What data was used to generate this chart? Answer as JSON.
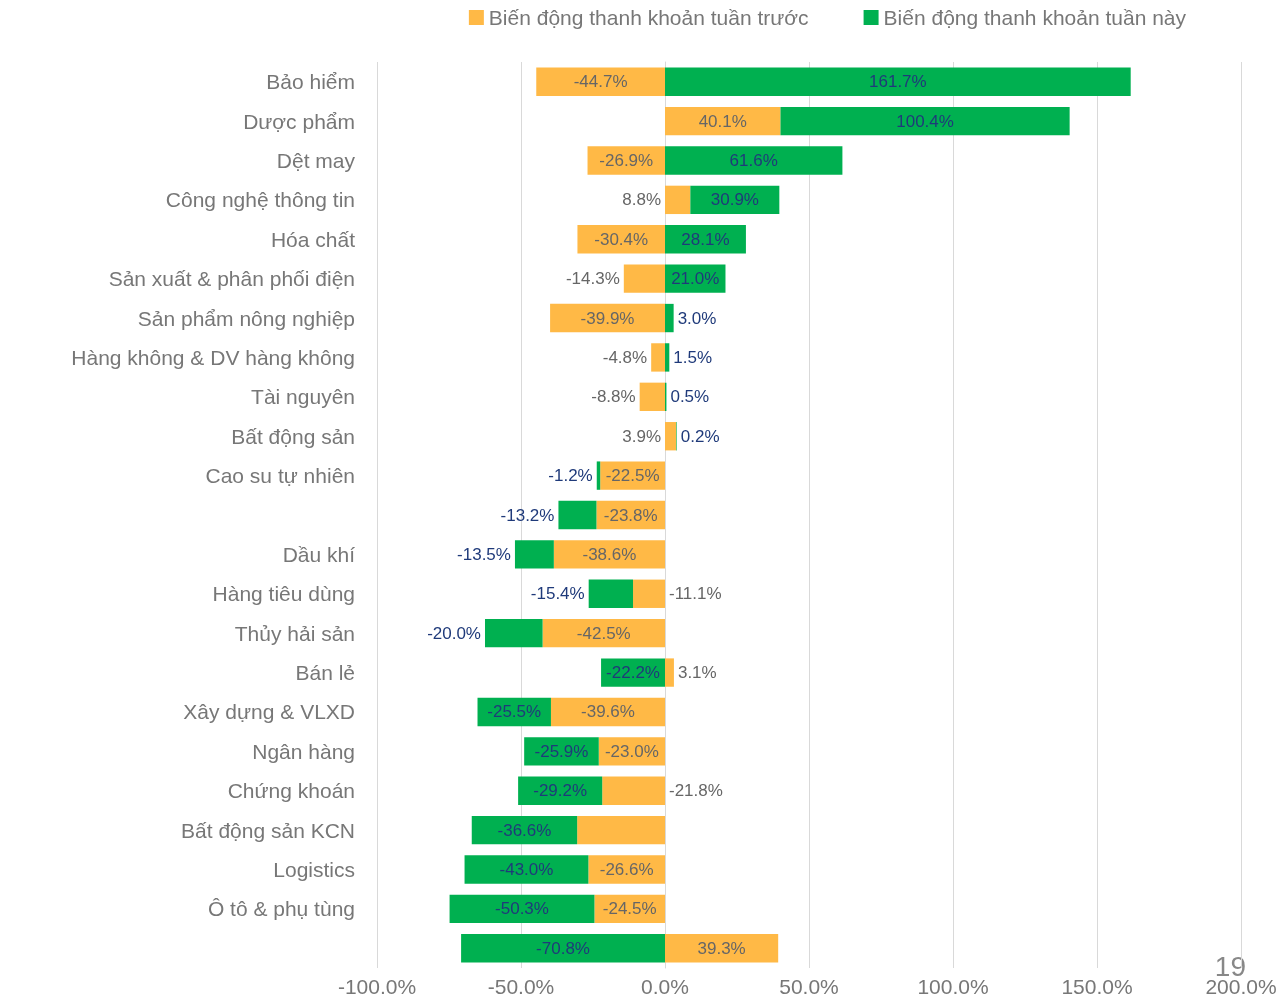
{
  "chart_data": {
    "type": "bar",
    "orientation": "horizontal",
    "stacked": true,
    "categories": [
      "Bảo hiểm",
      "Dược phẩm",
      "Dệt may",
      "Công nghệ thông tin",
      "Hóa chất",
      "Sản xuất & phân phối điện",
      "Sản phẩm nông nghiệp",
      "Hàng không & DV hàng không",
      "Tài nguyên",
      "Bất động sản",
      "Cao su tự nhiên",
      null,
      "Dầu khí",
      "Hàng tiêu dùng",
      "Thủy hải sản",
      "Bán lẻ",
      "Xây dựng & VLXD",
      "Ngân hàng",
      "Chứng khoán",
      "Bất động sản KCN",
      "Logistics",
      "Ô tô & phụ tùng",
      null
    ],
    "series": [
      {
        "name": "Biến động thanh khoản tuần trước",
        "color": "#ffb946",
        "values": [
          -44.7,
          40.1,
          -26.9,
          8.8,
          -30.4,
          -14.3,
          -39.9,
          -4.8,
          -8.8,
          3.9,
          -22.5,
          -23.8,
          -38.6,
          -11.1,
          -42.5,
          3.1,
          -39.6,
          -23.0,
          -21.8,
          -30.5,
          -26.6,
          -24.5,
          39.3
        ],
        "value_labels": [
          "-44.7%",
          "40.1%",
          "-26.9%",
          "8.8%",
          "-30.4%",
          "-14.3%",
          "-39.9%",
          "-4.8%",
          "-8.8%",
          "3.9%",
          "-22.5%",
          "-23.8%",
          "-38.6%",
          "-11.1%",
          "-42.5%",
          "3.1%",
          "-39.6%",
          "-23.0%",
          "-21.8%",
          null,
          "-26.6%",
          "-24.5%",
          "39.3%"
        ]
      },
      {
        "name": "Biến động thanh khoản tuần này",
        "color": "#00b050",
        "values": [
          161.7,
          100.4,
          61.6,
          30.9,
          28.1,
          21.0,
          3.0,
          1.5,
          0.5,
          0.2,
          -1.2,
          -13.2,
          -13.5,
          -15.4,
          -20.0,
          -22.2,
          -25.5,
          -25.9,
          -29.2,
          -36.6,
          -43.0,
          -50.3,
          -70.8
        ],
        "value_labels": [
          "161.7%",
          "100.4%",
          "61.6%",
          "30.9%",
          "28.1%",
          "21.0%",
          "3.0%",
          "1.5%",
          "0.5%",
          "0.2%",
          "-1.2%",
          "-13.2%",
          "-13.5%",
          "-15.4%",
          "-20.0%",
          "-22.2%",
          "-25.5%",
          "-25.9%",
          "-29.2%",
          "-36.6%",
          "-43.0%",
          "-50.3%",
          "-70.8%"
        ]
      }
    ],
    "xlim": [
      -100,
      200
    ],
    "xticks": [
      {
        "value": -100,
        "label": "-100.0%"
      },
      {
        "value": -50,
        "label": "-50.0%"
      },
      {
        "value": 0,
        "label": "0.0%"
      },
      {
        "value": 50,
        "label": "50.0%"
      },
      {
        "value": 100,
        "label": "100.0%"
      },
      {
        "value": 150,
        "label": "150.0%"
      },
      {
        "value": 200,
        "label": "200.0%"
      }
    ],
    "grid": "x",
    "legend": "top right",
    "annotations": [
      "19"
    ]
  }
}
